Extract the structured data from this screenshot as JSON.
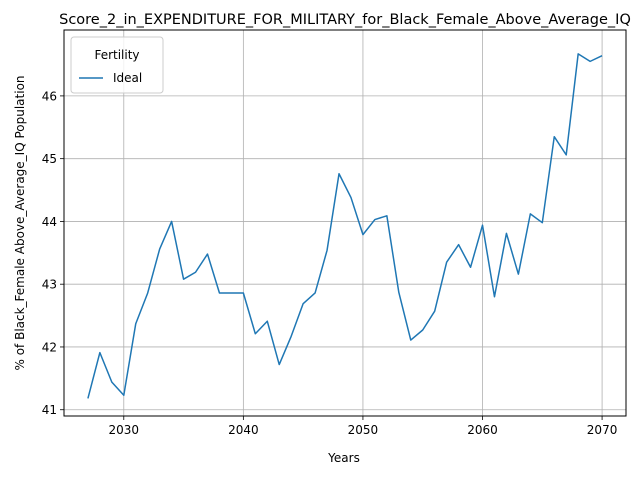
{
  "chart_data": {
    "type": "line",
    "title": "Score_2_in_EXPENDITURE_FOR_MILITARY_for_Black_Female_Above_Average_IQ",
    "xlabel": "Years",
    "ylabel": "% of Black_Female Above_Average_IQ Population",
    "xlim": [
      2025,
      2072
    ],
    "ylim": [
      40.9,
      47.05
    ],
    "xticks": [
      2030,
      2040,
      2050,
      2060,
      2070
    ],
    "yticks": [
      41,
      42,
      43,
      44,
      45,
      46
    ],
    "grid": true,
    "legend": {
      "title": "Fertility",
      "placement": "top-left"
    },
    "series": [
      {
        "name": "Ideal",
        "color": "#1f77b4",
        "x": [
          2027,
          2028,
          2029,
          2030,
          2031,
          2032,
          2033,
          2034,
          2035,
          2036,
          2037,
          2038,
          2039,
          2040,
          2041,
          2042,
          2043,
          2044,
          2045,
          2046,
          2047,
          2048,
          2049,
          2050,
          2051,
          2052,
          2053,
          2054,
          2055,
          2056,
          2057,
          2058,
          2059,
          2060,
          2061,
          2062,
          2063,
          2064,
          2065,
          2066,
          2067,
          2068,
          2069,
          2070
        ],
        "values": [
          41.18,
          41.91,
          41.44,
          41.23,
          42.37,
          42.86,
          43.56,
          44.0,
          43.08,
          43.19,
          43.48,
          42.86,
          42.86,
          42.86,
          42.21,
          42.41,
          41.72,
          42.17,
          42.69,
          42.86,
          43.54,
          44.76,
          44.38,
          43.79,
          44.03,
          44.09,
          42.87,
          42.11,
          42.27,
          42.57,
          43.35,
          43.63,
          43.27,
          43.94,
          42.8,
          43.81,
          43.16,
          44.12,
          43.98,
          45.35,
          45.06,
          46.67,
          46.55,
          46.64
        ]
      }
    ]
  }
}
